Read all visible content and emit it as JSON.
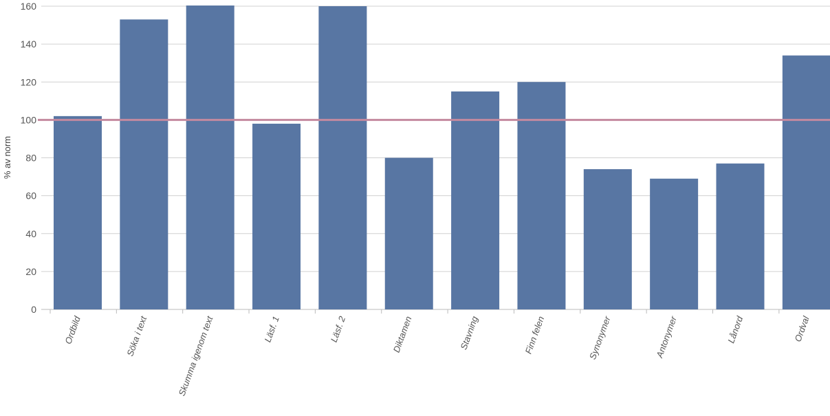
{
  "chart_data": {
    "type": "bar",
    "ylabel": "% av norm",
    "ylim": [
      0,
      160
    ],
    "y_ticks": [
      0,
      20,
      40,
      60,
      80,
      100,
      120,
      140,
      160
    ],
    "grid": true,
    "categories": [
      "Ordbild",
      "Söka i text",
      "Skumma igenom text",
      "Läsf. 1",
      "Läsf. 2",
      "Diktamen",
      "Stavning",
      "Finn felen",
      "Synonymer",
      "Antonymer",
      "Lånord",
      "Ordval"
    ],
    "series": [
      {
        "values": [
          102,
          153,
          165,
          98,
          160,
          80,
          115,
          120,
          74,
          69,
          77,
          134
        ]
      }
    ],
    "reference_line": {
      "value": 100,
      "color": "#c48a9f"
    },
    "colors": {
      "bar": "#5876a3",
      "grid": "#d0d0d0",
      "axis": "#bbbbbb",
      "text": "#555555"
    }
  }
}
